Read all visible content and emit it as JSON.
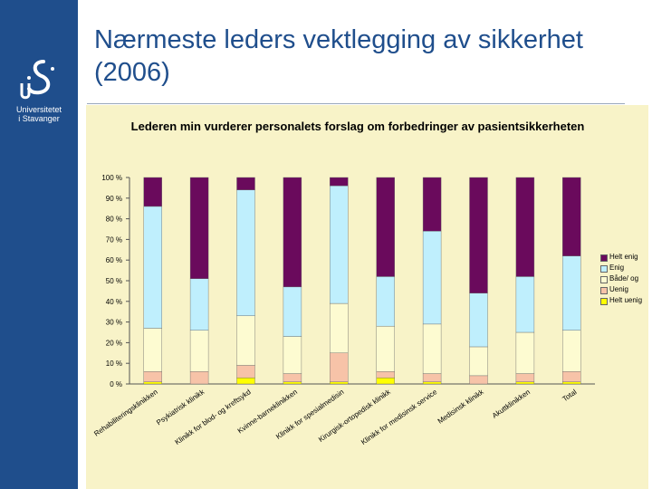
{
  "slide": {
    "title": "Nærmeste leders vektlegging av sikkerhet (2006)"
  },
  "logo": {
    "line1": "Universitetet",
    "line2": "i Stavanger"
  },
  "colors": {
    "sidebar": "#1f4e8c",
    "panel": "#f8f3c8",
    "helt_enig": "#6a0a5c",
    "enig": "#bfeffd",
    "bade_og": "#fdfbd1",
    "uenig": "#f7c3a8",
    "helt_uenig": "#ffff00"
  },
  "chart_data": {
    "type": "bar",
    "stacked": true,
    "percent": true,
    "title": "Lederen min vurderer personalets forslag om forbedringer av pasientsikkerheten",
    "ylim": [
      0,
      100
    ],
    "yticks": [
      "0 %",
      "10 %",
      "20 %",
      "30 %",
      "40 %",
      "50 %",
      "60 %",
      "70 %",
      "80 %",
      "90 %",
      "100 %"
    ],
    "categories": [
      "Rehabiliteringsklinikken",
      "Psykiatrisk klinikk",
      "Klinikk for blod- og kreftsykd",
      "Kvinne-barneklinikken",
      "Klinikk for spesialmedisin",
      "Kirurgisk-ortopedisk klinikk",
      "Klinikk for medisinsk service",
      "Medisinsk klinikk",
      "Akuttklinikken",
      "Total"
    ],
    "series": [
      {
        "name": "Helt uenig",
        "color": "#ffff00",
        "values": [
          1,
          0,
          3,
          1,
          1,
          3,
          1,
          0,
          1,
          1
        ]
      },
      {
        "name": "Uenig",
        "color": "#f7c3a8",
        "values": [
          5,
          6,
          6,
          4,
          14,
          3,
          4,
          4,
          4,
          5
        ]
      },
      {
        "name": "Både/ og",
        "color": "#fdfbd1",
        "values": [
          21,
          20,
          24,
          18,
          24,
          22,
          24,
          14,
          20,
          20
        ]
      },
      {
        "name": "Enig",
        "color": "#bfeffd",
        "values": [
          59,
          25,
          61,
          24,
          57,
          24,
          45,
          26,
          27,
          36
        ]
      },
      {
        "name": "Helt enig",
        "color": "#6a0a5c",
        "values": [
          14,
          49,
          6,
          53,
          4,
          48,
          26,
          56,
          48,
          38
        ]
      }
    ],
    "legend": {
      "position": "right",
      "order": [
        "Helt enig",
        "Enig",
        "Både/ og",
        "Uenig",
        "Helt uenig"
      ]
    }
  }
}
